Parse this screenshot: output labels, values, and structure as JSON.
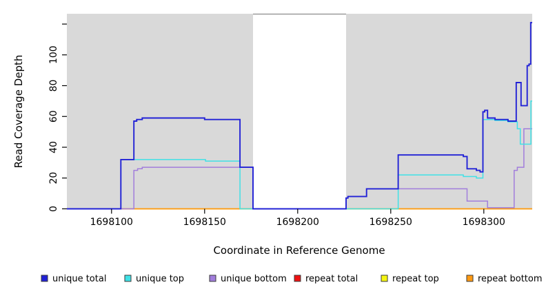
{
  "chart_data": {
    "type": "line",
    "step_mode": "post",
    "title": "",
    "xlabel": "Coordinate in Reference Genome",
    "ylabel": "Read Coverage Depth",
    "xlim": [
      1698076,
      1698326
    ],
    "ylim": [
      0,
      126.7
    ],
    "x_ticks": [
      1698100,
      1698150,
      1698200,
      1698250,
      1698300
    ],
    "y_ticks": [
      0,
      20,
      40,
      60,
      80,
      100
    ],
    "y_extra_tick": 120,
    "grid": false,
    "legend_position": "bottom",
    "plot_bg_color": "#D9D9D9",
    "masked_region": {
      "x0": 1698176,
      "x1": 1698226,
      "fill": "#FFFFFF",
      "top_border_color": "#999999"
    },
    "draw_order": [
      "repeat total",
      "repeat top",
      "repeat bottom",
      "unique bottom",
      "unique top",
      "unique total"
    ],
    "series": [
      {
        "name": "unique total",
        "color": "#2121D6",
        "steps": [
          [
            1698076,
            0
          ],
          [
            1698105,
            32
          ],
          [
            1698112,
            57
          ],
          [
            1698113.5,
            58
          ],
          [
            1698116.5,
            59
          ],
          [
            1698150,
            58
          ],
          [
            1698169,
            27
          ],
          [
            1698176,
            0
          ],
          [
            1698226,
            7
          ],
          [
            1698227,
            8
          ],
          [
            1698237,
            13
          ],
          [
            1698254,
            35
          ],
          [
            1698289,
            34
          ],
          [
            1698291,
            26
          ],
          [
            1698296,
            25
          ],
          [
            1698298,
            24
          ],
          [
            1698299.5,
            63
          ],
          [
            1698300.5,
            64
          ],
          [
            1698302,
            59
          ],
          [
            1698306,
            58
          ],
          [
            1698313,
            57
          ],
          [
            1698317.4,
            82
          ],
          [
            1698320,
            67
          ],
          [
            1698323.3,
            93
          ],
          [
            1698324.3,
            94
          ],
          [
            1698325.2,
            121
          ]
        ]
      },
      {
        "name": "unique top",
        "color": "#3FE1E6",
        "steps": [
          [
            1698076,
            0
          ],
          [
            1698105,
            32
          ],
          [
            1698150.5,
            31
          ],
          [
            1698169,
            0
          ],
          [
            1698254,
            22
          ],
          [
            1698289,
            21
          ],
          [
            1698296,
            20
          ],
          [
            1698299.5,
            58
          ],
          [
            1698306,
            57.4
          ],
          [
            1698313,
            56.5
          ],
          [
            1698318,
            52
          ],
          [
            1698319.6,
            42
          ],
          [
            1698325.3,
            70
          ]
        ]
      },
      {
        "name": "unique bottom",
        "color": "#A17DDC",
        "steps": [
          [
            1698076,
            0
          ],
          [
            1698112,
            25
          ],
          [
            1698114,
            26
          ],
          [
            1698116.5,
            27
          ],
          [
            1698176,
            0
          ],
          [
            1698226,
            7
          ],
          [
            1698227,
            8
          ],
          [
            1698237,
            13
          ],
          [
            1698291,
            5
          ],
          [
            1698302,
            0.7
          ],
          [
            1698316.3,
            25
          ],
          [
            1698318,
            27
          ],
          [
            1698321.5,
            52
          ]
        ]
      },
      {
        "name": "repeat total",
        "color": "#EE1111",
        "steps": [
          [
            1698076,
            0
          ]
        ]
      },
      {
        "name": "repeat top",
        "color": "#F5F511",
        "steps": [
          [
            1698076,
            0
          ]
        ]
      },
      {
        "name": "repeat bottom",
        "color": "#FF9912",
        "steps": [
          [
            1698076,
            0
          ]
        ]
      }
    ]
  }
}
